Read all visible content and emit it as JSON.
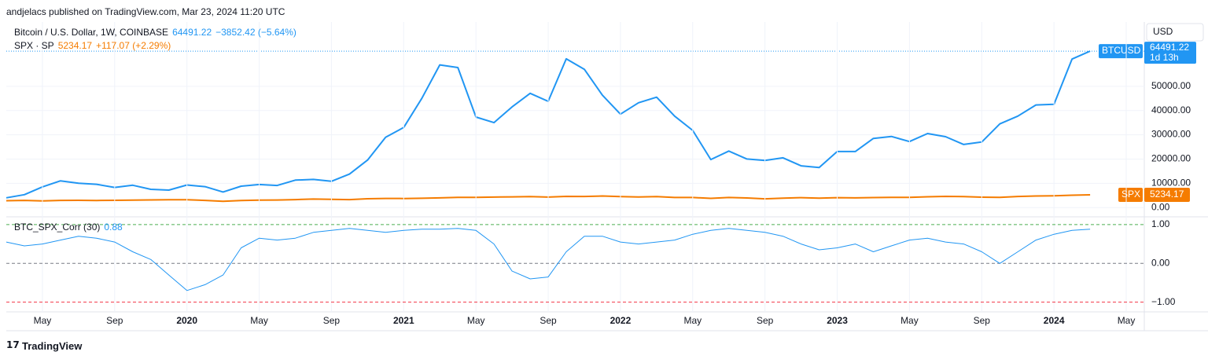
{
  "header": "andjelacs published on TradingView.com, Mar 23, 2024 11:20 UTC",
  "footer": "TradingView",
  "currency": "USD",
  "chart_data": [
    {
      "type": "line",
      "x": [
        "2019-03",
        "2019-04",
        "2019-05",
        "2019-06",
        "2019-07",
        "2019-08",
        "2019-09",
        "2019-10",
        "2019-11",
        "2019-12",
        "2020-01",
        "2020-02",
        "2020-03",
        "2020-04",
        "2020-05",
        "2020-06",
        "2020-07",
        "2020-08",
        "2020-09",
        "2020-10",
        "2020-11",
        "2020-12",
        "2021-01",
        "2021-02",
        "2021-03",
        "2021-04",
        "2021-05",
        "2021-06",
        "2021-07",
        "2021-08",
        "2021-09",
        "2021-10",
        "2021-11",
        "2021-12",
        "2022-01",
        "2022-02",
        "2022-03",
        "2022-04",
        "2022-05",
        "2022-06",
        "2022-07",
        "2022-08",
        "2022-09",
        "2022-10",
        "2022-11",
        "2022-12",
        "2023-01",
        "2023-02",
        "2023-03",
        "2023-04",
        "2023-05",
        "2023-06",
        "2023-07",
        "2023-08",
        "2023-09",
        "2023-10",
        "2023-11",
        "2023-12",
        "2024-01",
        "2024-02",
        "2024-03"
      ],
      "xlim": [
        "2019-03",
        "2024-06"
      ],
      "ylim": [
        -3500,
        76500
      ],
      "yticks": [
        {
          "value": 0,
          "label": "0.00"
        },
        {
          "value": 10000,
          "label": "10000.00"
        },
        {
          "value": 20000,
          "label": "20000.00"
        },
        {
          "value": 30000,
          "label": "30000.00"
        },
        {
          "value": 40000,
          "label": "40000.00"
        },
        {
          "value": 50000,
          "label": "50000.00"
        }
      ],
      "grid": true,
      "series": [
        {
          "name": "Bitcoin / U.S. Dollar, 1W, COINBASE",
          "tag": "BTCUSD",
          "countdown": "1d 13h",
          "change": "−3852.42 (−5.64%)",
          "color": "#2196f3",
          "values": [
            4000,
            5300,
            8500,
            11000,
            10000,
            9600,
            8300,
            9200,
            7500,
            7200,
            9300,
            8600,
            6400,
            8800,
            9500,
            9100,
            11300,
            11600,
            10800,
            13800,
            19600,
            29000,
            33000,
            45000,
            58800,
            57700,
            37300,
            35000,
            41500,
            47100,
            43800,
            61300,
            57000,
            46300,
            38500,
            43200,
            45500,
            37700,
            31800,
            19800,
            23300,
            20000,
            19400,
            20500,
            17200,
            16500,
            23100,
            23100,
            28500,
            29300,
            27200,
            30500,
            29200,
            26000,
            27000,
            34500,
            37700,
            42300,
            42600,
            61200,
            64491.22
          ]
        },
        {
          "name": "SPX · SP",
          "tag": "SPX",
          "change": "+117.07 (+2.29%)",
          "color": "#f57c00",
          "values": [
            2800,
            2945,
            2750,
            2940,
            2980,
            2925,
            2976,
            3037,
            3140,
            3230,
            3225,
            2954,
            2585,
            2912,
            3044,
            3100,
            3271,
            3500,
            3363,
            3270,
            3621,
            3756,
            3714,
            3811,
            3973,
            4181,
            4204,
            4297,
            4395,
            4522,
            4307,
            4605,
            4567,
            4766,
            4515,
            4373,
            4530,
            4131,
            4132,
            3785,
            4130,
            3955,
            3585,
            3872,
            4080,
            3839,
            4077,
            3970,
            4109,
            4169,
            4180,
            4450,
            4589,
            4508,
            4288,
            4194,
            4568,
            4770,
            4846,
            5096,
            5234.17
          ]
        }
      ]
    },
    {
      "type": "line",
      "x": [
        "2019-03",
        "2019-04",
        "2019-05",
        "2019-06",
        "2019-07",
        "2019-08",
        "2019-09",
        "2019-10",
        "2019-11",
        "2019-12",
        "2020-01",
        "2020-02",
        "2020-03",
        "2020-04",
        "2020-05",
        "2020-06",
        "2020-07",
        "2020-08",
        "2020-09",
        "2020-10",
        "2020-11",
        "2020-12",
        "2021-01",
        "2021-02",
        "2021-03",
        "2021-04",
        "2021-05",
        "2021-06",
        "2021-07",
        "2021-08",
        "2021-09",
        "2021-10",
        "2021-11",
        "2021-12",
        "2022-01",
        "2022-02",
        "2022-03",
        "2022-04",
        "2022-05",
        "2022-06",
        "2022-07",
        "2022-08",
        "2022-09",
        "2022-10",
        "2022-11",
        "2022-12",
        "2023-01",
        "2023-02",
        "2023-03",
        "2023-04",
        "2023-05",
        "2023-06",
        "2023-07",
        "2023-08",
        "2023-09",
        "2023-10",
        "2023-11",
        "2023-12",
        "2024-01",
        "2024-02",
        "2024-03"
      ],
      "xlim": [
        "2019-03",
        "2024-06"
      ],
      "ylim": [
        -1.25,
        1.18
      ],
      "yticks": [
        {
          "value": 1,
          "label": "1.00"
        },
        {
          "value": 0,
          "label": "0.00"
        },
        {
          "value": -1,
          "label": "−1.00"
        }
      ],
      "level_colors": [
        "#4caf50",
        "#787b86",
        "#f23645"
      ],
      "xticks": [
        {
          "value": "2019-05",
          "label": "May"
        },
        {
          "value": "2019-09",
          "label": "Sep"
        },
        {
          "value": "2020-01",
          "label": "2020"
        },
        {
          "value": "2020-05",
          "label": "May"
        },
        {
          "value": "2020-09",
          "label": "Sep"
        },
        {
          "value": "2021-01",
          "label": "2021"
        },
        {
          "value": "2021-05",
          "label": "May"
        },
        {
          "value": "2021-09",
          "label": "Sep"
        },
        {
          "value": "2022-01",
          "label": "2022"
        },
        {
          "value": "2022-05",
          "label": "May"
        },
        {
          "value": "2022-09",
          "label": "Sep"
        },
        {
          "value": "2023-01",
          "label": "2023"
        },
        {
          "value": "2023-05",
          "label": "May"
        },
        {
          "value": "2023-09",
          "label": "Sep"
        },
        {
          "value": "2024-01",
          "label": "2024"
        },
        {
          "value": "2024-05",
          "label": "May"
        }
      ],
      "series": [
        {
          "name": "BTC_SPX_Corr (30)",
          "color": "#2196f3",
          "values": [
            0.55,
            0.45,
            0.5,
            0.6,
            0.7,
            0.65,
            0.55,
            0.3,
            0.1,
            -0.3,
            -0.7,
            -0.55,
            -0.3,
            0.4,
            0.65,
            0.6,
            0.65,
            0.8,
            0.85,
            0.9,
            0.85,
            0.8,
            0.85,
            0.88,
            0.88,
            0.9,
            0.85,
            0.5,
            -0.2,
            -0.4,
            -0.35,
            0.3,
            0.7,
            0.7,
            0.55,
            0.5,
            0.55,
            0.6,
            0.75,
            0.85,
            0.9,
            0.85,
            0.8,
            0.7,
            0.5,
            0.35,
            0.4,
            0.5,
            0.3,
            0.45,
            0.6,
            0.65,
            0.55,
            0.5,
            0.3,
            0.0,
            0.3,
            0.6,
            0.75,
            0.85,
            0.88
          ]
        }
      ]
    }
  ]
}
